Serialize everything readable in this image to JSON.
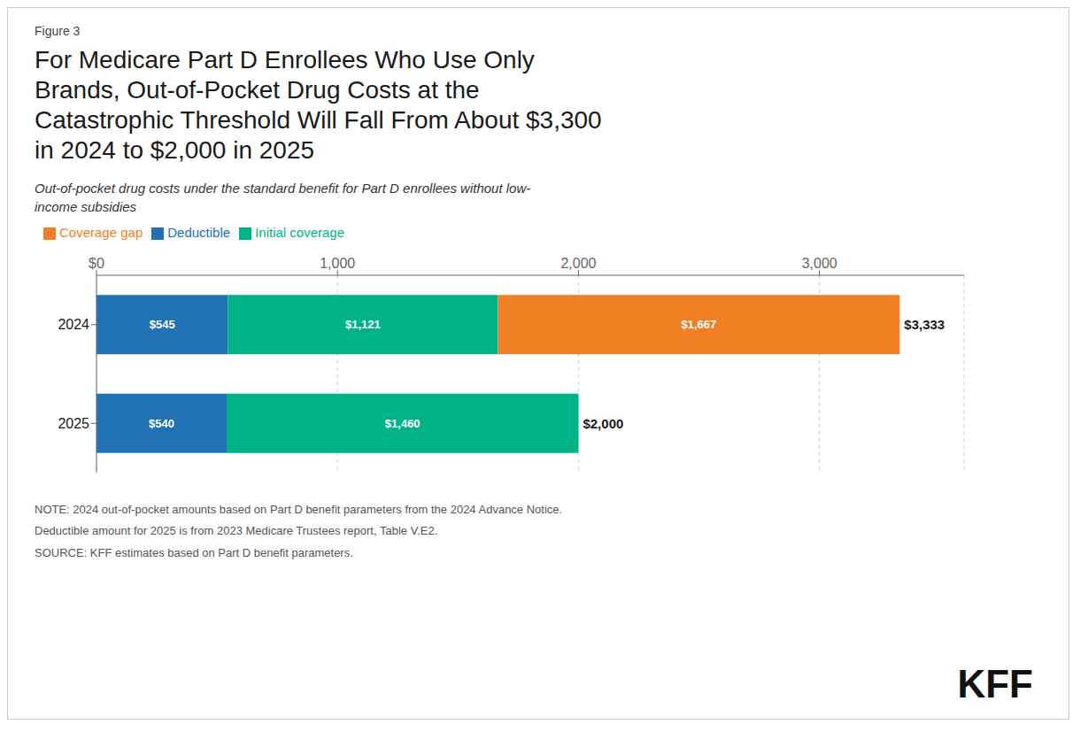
{
  "chart_data": {
    "type": "bar",
    "figure_label": "Figure 3",
    "title": "For Medicare Part D Enrollees Who Use Only\nBrands, Out-of-Pocket Drug Costs at the\nCatastrophic Threshold Will Fall From About $3,300\nin 2024 to $2,000 in 2025",
    "subtitle": "Out-of-pocket drug costs under the standard benefit for Part D enrollees without low-\nincome subsidies",
    "orientation": "horizontal",
    "stacked": true,
    "data_labels": true,
    "grid": true,
    "legend": "upper left",
    "categories": [
      "2024",
      "2025"
    ],
    "series": [
      {
        "name": "Deductible",
        "color": "#2171b5",
        "values": [
          545,
          540
        ],
        "value_labels": [
          "$545",
          "$540"
        ]
      },
      {
        "name": "Initial coverage",
        "color": "#00b386",
        "values": [
          1121,
          1460
        ],
        "value_labels": [
          "$1,121",
          "$1,460"
        ]
      },
      {
        "name": "Coverage gap",
        "color": "#f07f23",
        "values": [
          1667,
          0
        ],
        "value_labels": [
          "$1,667",
          null
        ]
      }
    ],
    "totals": {
      "values": [
        3333,
        2000
      ],
      "value_labels": [
        "$3,333",
        "$2,000"
      ]
    },
    "xlim": [
      0,
      3600
    ],
    "xticks": [
      {
        "value": 0,
        "label": "$0"
      },
      {
        "value": 1000,
        "label": "1,000"
      },
      {
        "value": 2000,
        "label": "2,000"
      },
      {
        "value": 3000,
        "label": "3,000"
      }
    ],
    "notes": [
      "NOTE: 2024 out-of-pocket amounts based on Part D benefit parameters from the 2024 Advance Notice.",
      "Deductible amount for 2025 is from 2023 Medicare Trustees report, Table V.E2.",
      "SOURCE: KFF estimates based on Part D benefit parameters."
    ],
    "logo": "KFF"
  }
}
